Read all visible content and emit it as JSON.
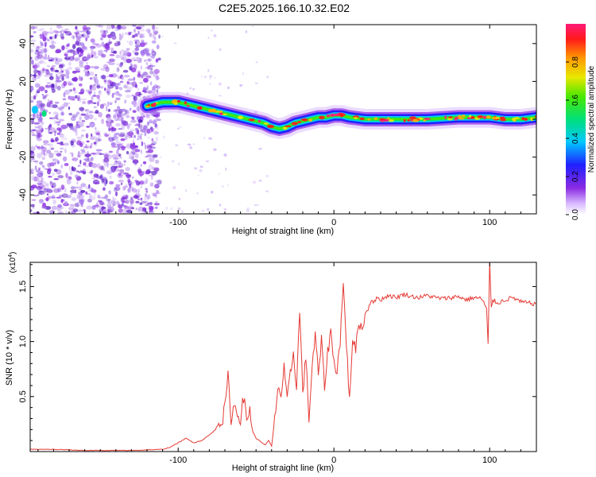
{
  "title": "C2E5.2025.166.10.32.E02",
  "colors": {
    "snr_line": "#e53b35",
    "scatter": "#8a2be2",
    "frame": "#000000"
  },
  "chart_data": [
    {
      "type": "heatmap",
      "name": "spectrogram",
      "xlabel": "Height of straight line (km)",
      "ylabel": "Frequency (Hz)",
      "xlim": [
        -195,
        130
      ],
      "ylim": [
        -50,
        50
      ],
      "xticks": [
        -100,
        0,
        100
      ],
      "xtick_labels": [
        "-100",
        "0",
        "100"
      ],
      "yticks": [
        -40,
        -20,
        0,
        20,
        40
      ],
      "ytick_labels": [
        "-40",
        "-20",
        "0",
        "20",
        "40"
      ],
      "colorscale": "rainbow",
      "colorbar": {
        "label": "Normalized spectral amplitude",
        "range": [
          0,
          1
        ],
        "ticks": [
          0.0,
          0.2,
          0.4,
          0.6,
          0.8
        ],
        "tick_labels": [
          "0.0",
          "0.2",
          "0.4",
          "0.6",
          "0.8"
        ]
      },
      "noise_region_x": [
        -195,
        -112
      ],
      "ridge": {
        "x": [
          -195,
          -190,
          -185,
          -120,
          -115,
          -110,
          -100,
          -90,
          -80,
          -70,
          -60,
          -50,
          -45,
          -40,
          -35,
          -30,
          -25,
          -20,
          -15,
          -10,
          -5,
          0,
          5,
          10,
          20,
          40,
          60,
          80,
          100,
          110,
          120,
          130
        ],
        "y": [
          6,
          4,
          3,
          7,
          8,
          9,
          9,
          7,
          5,
          3,
          1,
          -1,
          -2,
          -4,
          -5,
          -4,
          -2,
          -1,
          0,
          1,
          1,
          2,
          2,
          1,
          0,
          0,
          0,
          1,
          1,
          0,
          0,
          1
        ]
      }
    },
    {
      "type": "line",
      "name": "snr",
      "xlabel": "Height of straight line (km)",
      "ylabel": "SNR (10 * v/v)",
      "scale_label": "(x10",
      "scale_exp": "4",
      "scale_close": ")",
      "xlim": [
        -195,
        130
      ],
      "ylim": [
        0,
        1.72
      ],
      "xticks": [
        -100,
        0,
        100
      ],
      "xtick_labels": [
        "-100",
        "0",
        "100"
      ],
      "yticks": [
        0.5,
        1.0,
        1.5
      ],
      "ytick_labels": [
        "0.5",
        "1.0",
        "1.5"
      ],
      "series": [
        {
          "x": [
            -195,
            -180,
            -160,
            -140,
            -130,
            -120,
            -110,
            -105,
            -100,
            -95,
            -90,
            -85,
            -80,
            -76,
            -74,
            -72,
            -70,
            -68,
            -66,
            -64,
            -62,
            -60,
            -58,
            -56,
            -54,
            -52,
            -50,
            -48,
            -46,
            -44,
            -42,
            -40,
            -38,
            -36,
            -34,
            -32,
            -30,
            -28,
            -26,
            -24,
            -22,
            -20,
            -18,
            -16,
            -14,
            -12,
            -10,
            -8,
            -6,
            -4,
            -2,
            0,
            2,
            4,
            6,
            8,
            10,
            12,
            14,
            16,
            18,
            20,
            22,
            24,
            26,
            28,
            30,
            35,
            40,
            45,
            50,
            55,
            60,
            65,
            70,
            75,
            80,
            85,
            90,
            95,
            98,
            99,
            100,
            101,
            102,
            105,
            110,
            115,
            120,
            125,
            130
          ],
          "y": [
            0.02,
            0.02,
            0.01,
            0.01,
            0.01,
            0.015,
            0.02,
            0.04,
            0.08,
            0.12,
            0.08,
            0.1,
            0.15,
            0.2,
            0.3,
            0.25,
            0.4,
            0.68,
            0.3,
            0.42,
            0.35,
            0.3,
            0.5,
            0.28,
            0.38,
            0.18,
            0.12,
            0.1,
            0.08,
            0.06,
            0.1,
            0.05,
            0.28,
            0.6,
            0.5,
            0.75,
            0.45,
            0.7,
            0.9,
            0.6,
            1.27,
            0.55,
            0.85,
            0.3,
            0.78,
            1.05,
            0.7,
            1.0,
            0.6,
            0.9,
            1.1,
            0.8,
            0.75,
            1.0,
            1.53,
            1.0,
            0.45,
            1.05,
            0.9,
            1.2,
            1.1,
            1.25,
            1.3,
            1.38,
            1.36,
            1.4,
            1.38,
            1.42,
            1.4,
            1.43,
            1.41,
            1.4,
            1.42,
            1.4,
            1.39,
            1.4,
            1.41,
            1.38,
            1.4,
            1.39,
            1.3,
            0.95,
            1.72,
            1.3,
            1.38,
            1.35,
            1.38,
            1.4,
            1.36,
            1.35,
            1.34
          ]
        }
      ]
    }
  ]
}
